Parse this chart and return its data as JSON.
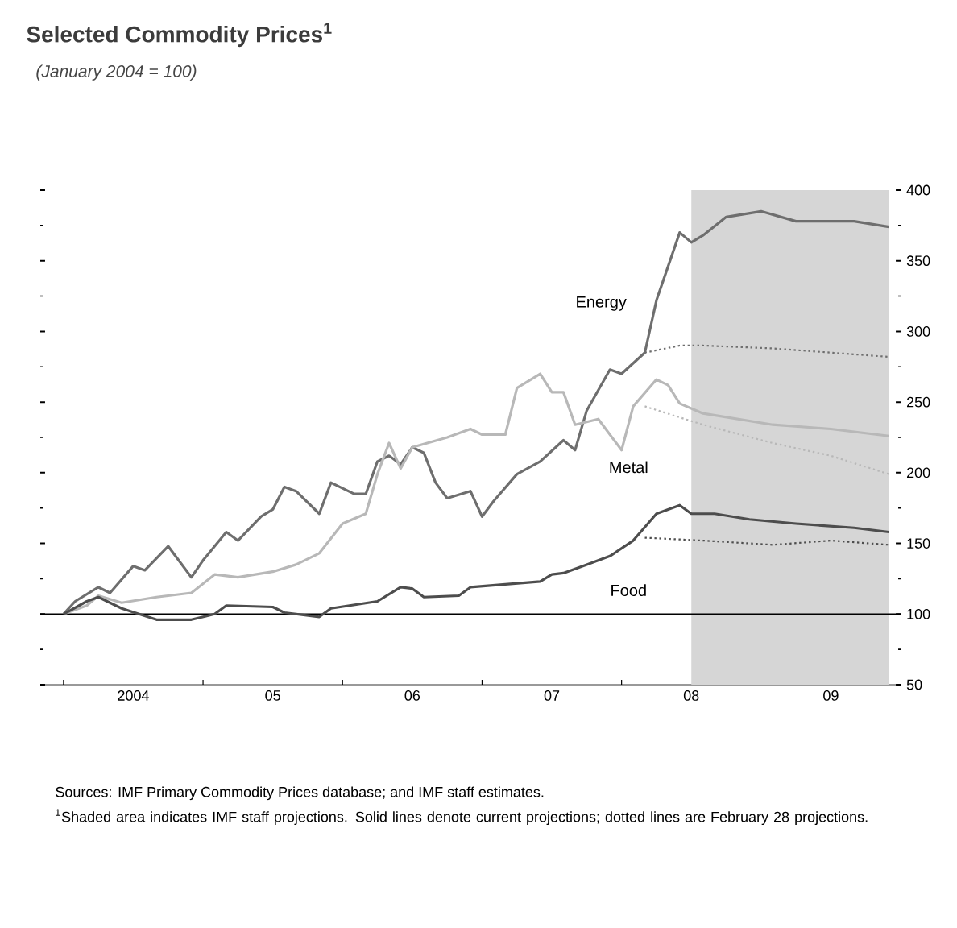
{
  "chart_data": {
    "type": "line",
    "title": "Selected Commodity Prices$^{1}$",
    "subtitle": "(January 2004 = 100)",
    "xlim": [
      "2003-11",
      "2010-01"
    ],
    "ylim": [
      50,
      400
    ],
    "xticks": [
      {
        "value": "2004-01",
        "label": null
      },
      {
        "value": "2005-01",
        "label": null
      },
      {
        "value": "2006-01",
        "label": null
      },
      {
        "value": "2007-01",
        "label": null
      },
      {
        "value": "2008-01",
        "label": null
      },
      {
        "value": "2009-01",
        "label": null
      },
      {
        "value": "2004-07",
        "label": "2004"
      },
      {
        "value": "2005-07",
        "label": "05"
      },
      {
        "value": "2006-07",
        "label": "06"
      },
      {
        "value": "2007-07",
        "label": "07"
      },
      {
        "value": "2008-07",
        "label": "08"
      },
      {
        "value": "2009-07",
        "label": "09"
      }
    ],
    "yticks": [
      50,
      {
        "value": 75,
        "label": null
      },
      100,
      {
        "value": 125,
        "label": null
      },
      150,
      {
        "value": 175,
        "label": null
      },
      200,
      {
        "value": 225,
        "label": null
      },
      250,
      {
        "value": 275,
        "label": null
      },
      300,
      {
        "value": 325,
        "label": null
      },
      350,
      {
        "value": 375,
        "label": null
      },
      400
    ],
    "grid": false,
    "marker": "none",
    "bands": [
      {
        "axis": "x",
        "from": "2008-07",
        "to": "2009-12",
        "color": "#d6d6d6"
      }
    ],
    "ref_lines": [
      {
        "axis": "y",
        "value": 100,
        "color": "#000000",
        "line_style": "solid"
      }
    ],
    "series": [
      {
        "name": "Energy",
        "color": "#6e6e6e",
        "line_style": "solid",
        "x": [
          "2004-01",
          "2004-02",
          "2004-04",
          "2004-05",
          "2004-07",
          "2004-08",
          "2004-10",
          "2004-12",
          "2005-01",
          "2005-03",
          "2005-04",
          "2005-06",
          "2005-07",
          "2005-08",
          "2005-09",
          "2005-11",
          "2005-12",
          "2006-02",
          "2006-03",
          "2006-04",
          "2006-05",
          "2006-06",
          "2006-07",
          "2006-08",
          "2006-09",
          "2006-10",
          "2006-12",
          "2007-01",
          "2007-02",
          "2007-04",
          "2007-06",
          "2007-08",
          "2007-09",
          "2007-10",
          "2007-12",
          "2008-01",
          "2008-03",
          "2008-04",
          "2008-06",
          "2008-07",
          "2008-08",
          "2008-10",
          "2009-01",
          "2009-04",
          "2009-09",
          "2009-12"
        ],
        "values": [
          100,
          109,
          119,
          115,
          134,
          131,
          148,
          126,
          138,
          158,
          152,
          169,
          174,
          190,
          187,
          171,
          193,
          185,
          185,
          208,
          212,
          206,
          218,
          214,
          193,
          182,
          187,
          169,
          180,
          199,
          208,
          223,
          216,
          244,
          273,
          270,
          285,
          322,
          370,
          363,
          368,
          381,
          385,
          378,
          378,
          374
        ]
      },
      {
        "name": "Metal",
        "color": "#b8b8b8",
        "line_style": "solid",
        "x": [
          "2004-01",
          "2004-03",
          "2004-04",
          "2004-06",
          "2004-09",
          "2004-12",
          "2005-02",
          "2005-04",
          "2005-07",
          "2005-09",
          "2005-11",
          "2006-01",
          "2006-03",
          "2006-04",
          "2006-05",
          "2006-06",
          "2006-07",
          "2006-10",
          "2006-12",
          "2007-01",
          "2007-03",
          "2007-04",
          "2007-06",
          "2007-07",
          "2007-08",
          "2007-09",
          "2007-11",
          "2008-01",
          "2008-02",
          "2008-04",
          "2008-05",
          "2008-06",
          "2008-08",
          "2009-02",
          "2009-07",
          "2009-12"
        ],
        "values": [
          100,
          106,
          113,
          108,
          112,
          115,
          128,
          126,
          130,
          135,
          143,
          164,
          171,
          199,
          221,
          203,
          218,
          225,
          231,
          227,
          227,
          260,
          270,
          257,
          257,
          234,
          238,
          216,
          247,
          266,
          262,
          249,
          242,
          234,
          231,
          226
        ]
      },
      {
        "name": "Food",
        "color": "#4d4d4d",
        "line_style": "solid",
        "x": [
          "2004-01",
          "2004-03",
          "2004-04",
          "2004-06",
          "2004-09",
          "2004-12",
          "2005-02",
          "2005-03",
          "2005-07",
          "2005-08",
          "2005-11",
          "2005-12",
          "2006-04",
          "2006-06",
          "2006-07",
          "2006-08",
          "2006-11",
          "2006-12",
          "2007-03",
          "2007-06",
          "2007-07",
          "2007-08",
          "2007-10",
          "2007-12",
          "2008-02",
          "2008-04",
          "2008-06",
          "2008-07",
          "2008-09",
          "2008-12",
          "2009-04",
          "2009-09",
          "2009-12"
        ],
        "values": [
          100,
          109,
          112,
          104,
          96,
          96,
          100,
          106,
          105,
          101,
          98,
          104,
          109,
          119,
          118,
          112,
          113,
          119,
          121,
          123,
          128,
          129,
          135,
          141,
          152,
          171,
          177,
          171,
          171,
          167,
          164,
          161,
          158
        ]
      },
      {
        "color": "#6e6e6e",
        "line_style": "dotted",
        "x": [
          "2008-03",
          "2008-06",
          "2008-08",
          "2009-02",
          "2009-07",
          "2009-12"
        ],
        "values": [
          285,
          290,
          290,
          288,
          285,
          282
        ]
      },
      {
        "color": "#b8b8b8",
        "line_style": "dotted",
        "x": [
          "2008-03",
          "2008-08",
          "2009-02",
          "2009-07",
          "2009-12"
        ],
        "values": [
          247,
          234,
          221,
          212,
          199
        ]
      },
      {
        "color": "#4d4d4d",
        "line_style": "dotted",
        "x": [
          "2008-03",
          "2008-08",
          "2009-02",
          "2009-07",
          "2009-12"
        ],
        "values": [
          154,
          152,
          149,
          152,
          149
        ]
      }
    ],
    "annotations": [
      "Sources: IMF Primary Commodity Prices database; and IMF staff estimates.",
      "$^{1}$Shaded area indicates IMF staff projections. Solid lines denote current projections; dotted lines are February 28 projections."
    ]
  }
}
